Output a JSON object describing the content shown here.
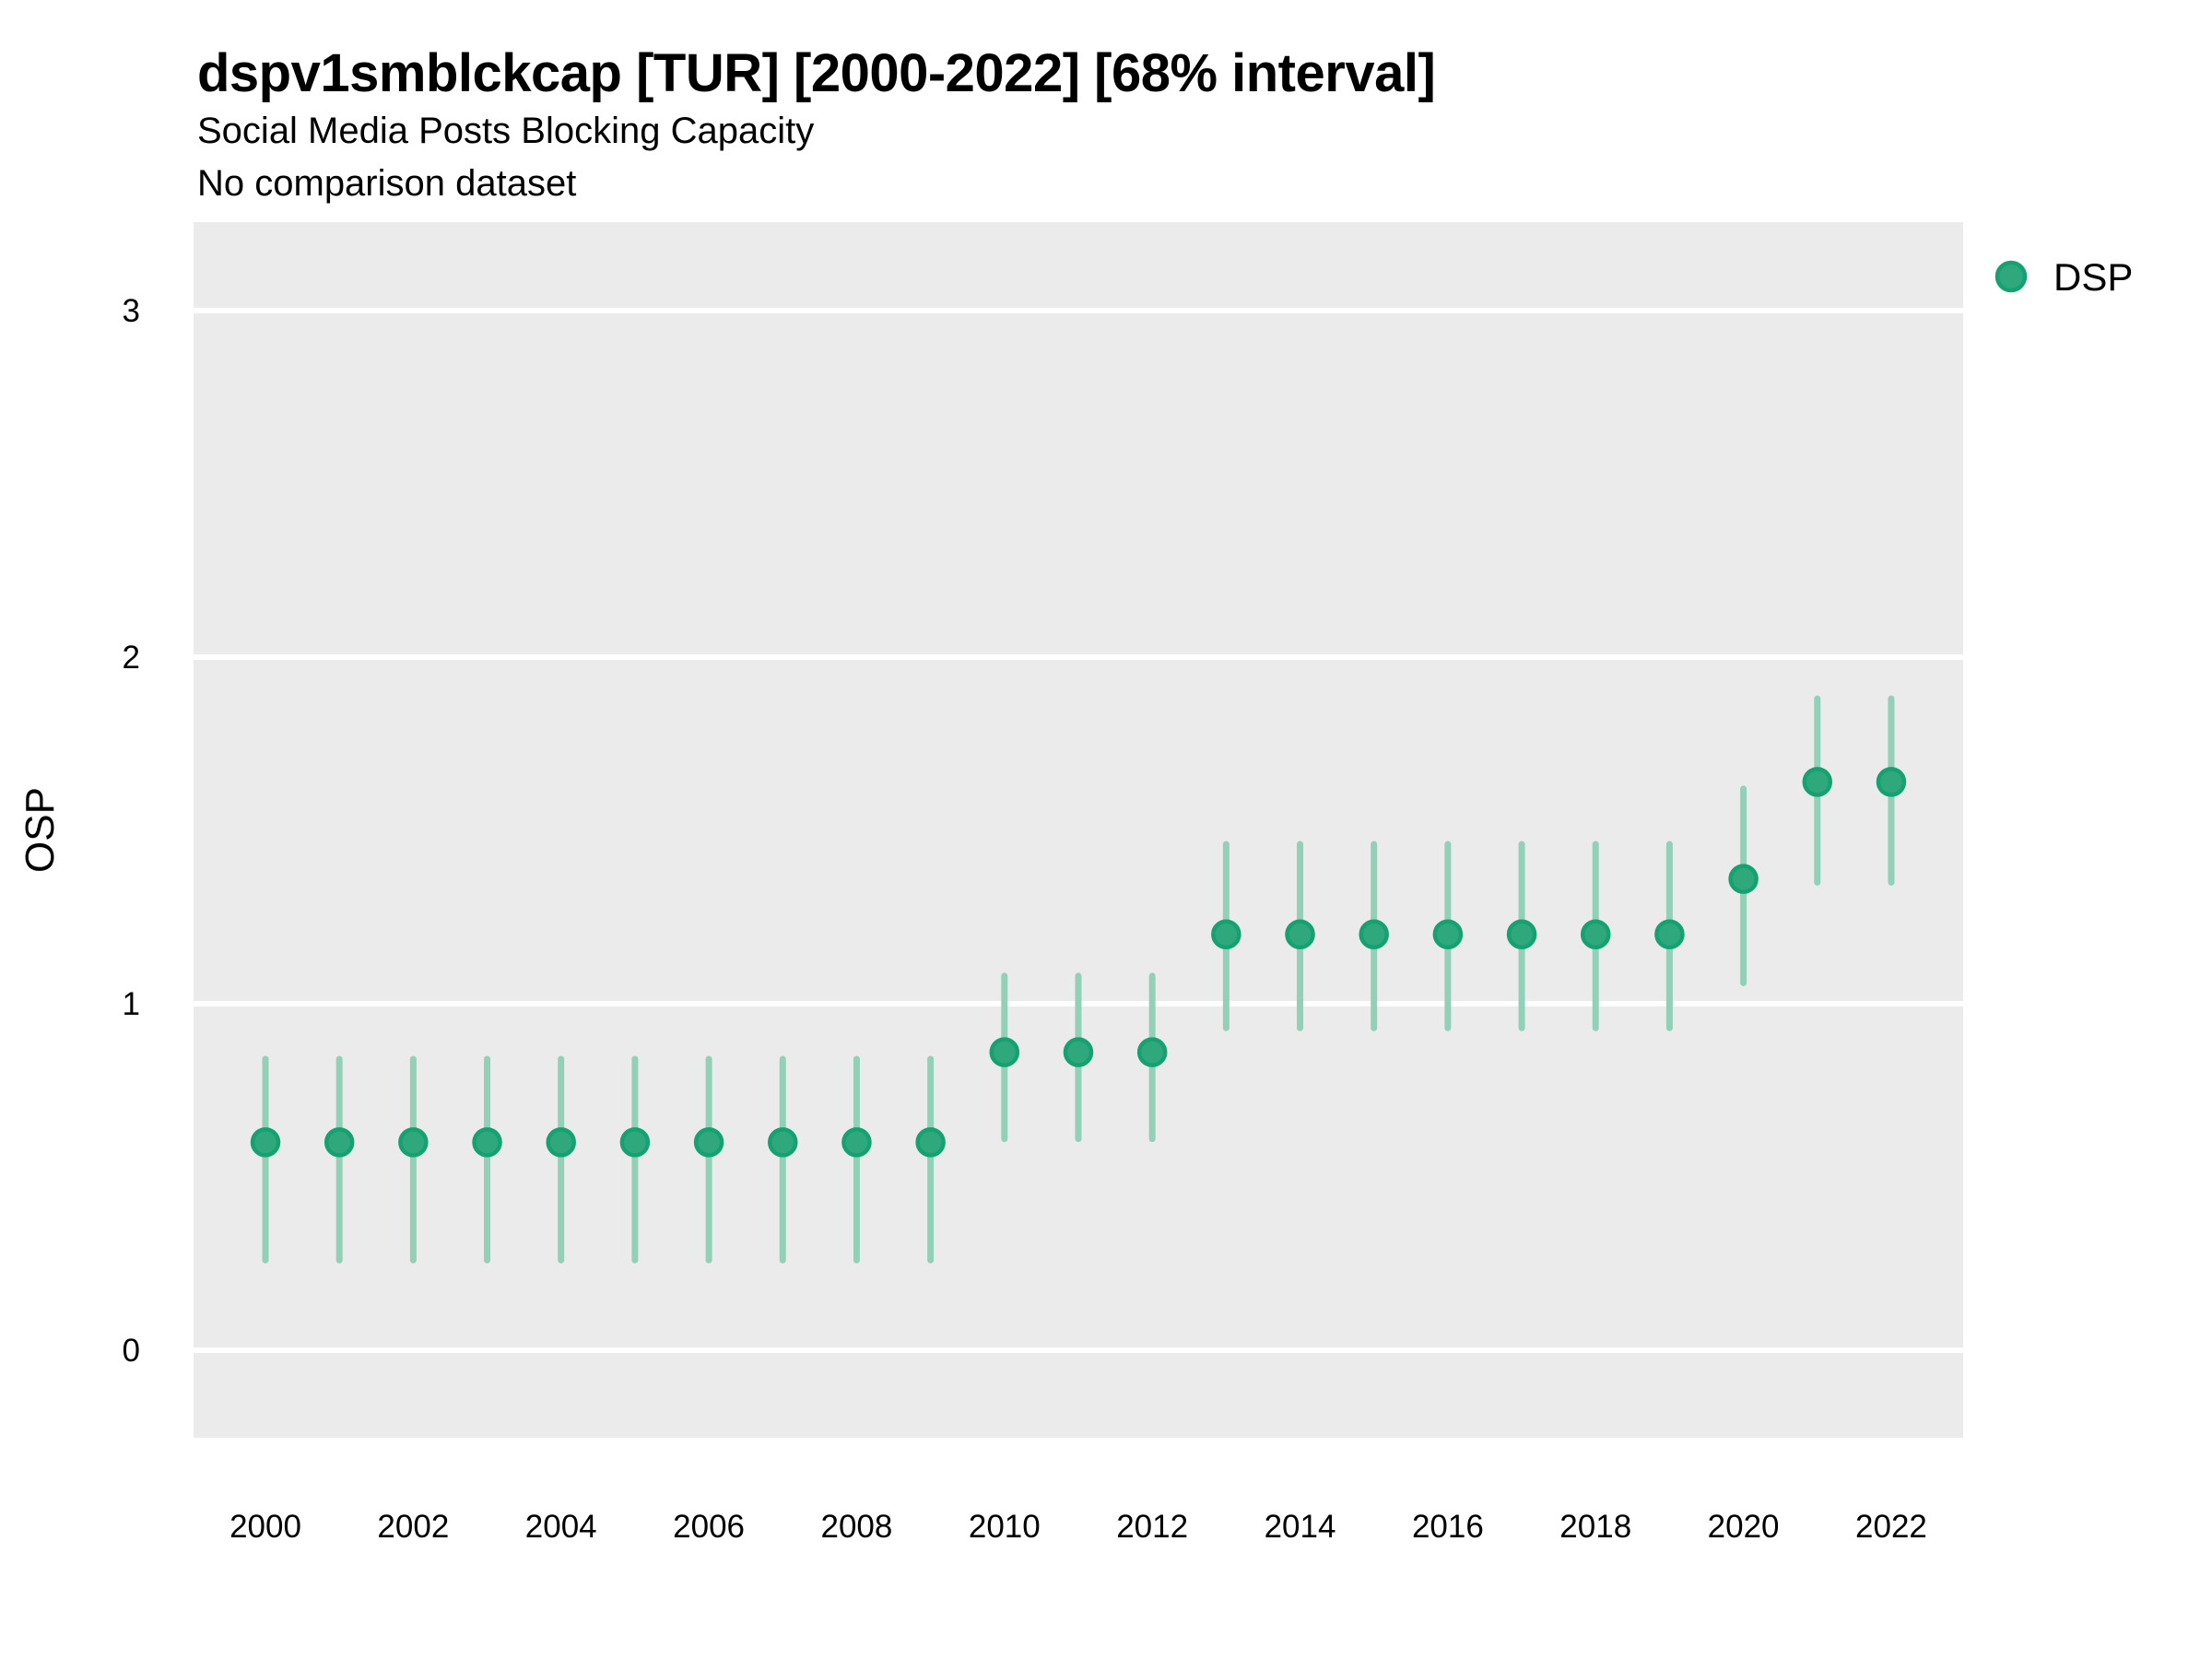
{
  "header": {
    "title": "dspv1smblckcap [TUR] [2000-2022] [68% interval]",
    "subtitle": "Social Media Posts Blocking Capacity",
    "note": "No comparison dataset"
  },
  "legend": {
    "position": "right-top",
    "items": [
      {
        "label": "DSP",
        "marker": "circle"
      }
    ]
  },
  "colors": {
    "panel_background": "#EBEBEB",
    "gridline": "#FFFFFF",
    "interval_bar": "#92D0BA",
    "point_fill": "#2FA87E",
    "point_stroke": "#16A173",
    "text": "#000000"
  },
  "chart_data": {
    "type": "pointrange",
    "title": "dspv1smblckcap [TUR] [2000-2022] [68% interval]",
    "subtitle": "Social Media Posts Blocking Capacity",
    "note": "No comparison dataset",
    "interval": "68%",
    "xlabel": "",
    "ylabel": "OSP",
    "x": [
      2000,
      2001,
      2002,
      2003,
      2004,
      2005,
      2006,
      2007,
      2008,
      2009,
      2010,
      2011,
      2012,
      2013,
      2014,
      2015,
      2016,
      2017,
      2018,
      2019,
      2020,
      2021,
      2022
    ],
    "series": [
      {
        "name": "DSP",
        "values": [
          0.6,
          0.6,
          0.6,
          0.6,
          0.6,
          0.6,
          0.6,
          0.6,
          0.6,
          0.6,
          0.86,
          0.86,
          0.86,
          1.2,
          1.2,
          1.2,
          1.2,
          1.2,
          1.2,
          1.2,
          1.36,
          1.64,
          1.64
        ],
        "lower": [
          0.26,
          0.26,
          0.26,
          0.26,
          0.26,
          0.26,
          0.26,
          0.26,
          0.26,
          0.26,
          0.61,
          0.61,
          0.61,
          0.93,
          0.93,
          0.93,
          0.93,
          0.93,
          0.93,
          0.93,
          1.06,
          1.35,
          1.35
        ],
        "upper": [
          0.84,
          0.84,
          0.84,
          0.84,
          0.84,
          0.84,
          0.84,
          0.84,
          0.84,
          0.84,
          1.08,
          1.08,
          1.08,
          1.46,
          1.46,
          1.46,
          1.46,
          1.46,
          1.46,
          1.46,
          1.62,
          1.88,
          1.88
        ]
      }
    ],
    "x_ticks": [
      2000,
      2002,
      2004,
      2006,
      2008,
      2010,
      2012,
      2014,
      2016,
      2018,
      2020,
      2022
    ],
    "y_ticks": [
      0,
      1,
      2,
      3
    ],
    "ylim": [
      -0.26,
      3.26
    ],
    "grid": "major-only",
    "legend_position": "right"
  }
}
